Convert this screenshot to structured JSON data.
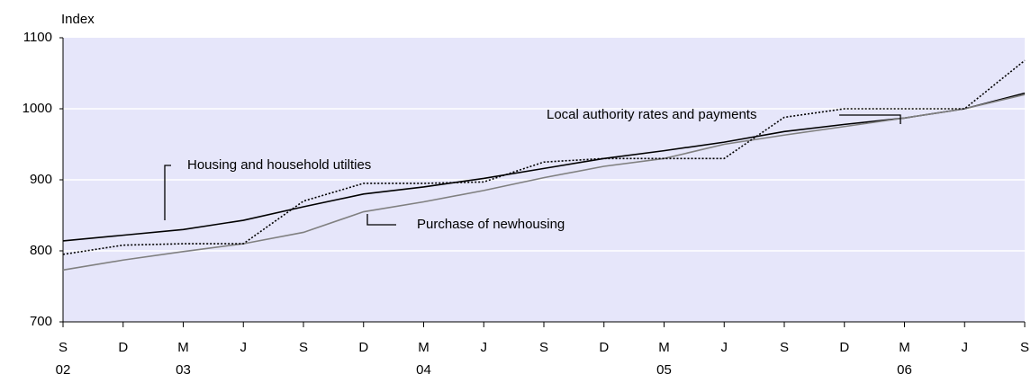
{
  "chart_data": {
    "type": "line",
    "y_label": "Index",
    "categories": [
      "S",
      "D",
      "M",
      "J",
      "S",
      "D",
      "M",
      "J",
      "S",
      "D",
      "M",
      "J",
      "S",
      "D",
      "M",
      "J",
      "S"
    ],
    "x_sublabels": [
      "02",
      null,
      "03",
      null,
      null,
      null,
      "04",
      null,
      null,
      null,
      "05",
      null,
      null,
      null,
      "06",
      null,
      null
    ],
    "ylim": [
      700,
      1100
    ],
    "yticks": [
      700,
      800,
      900,
      1000,
      1100
    ],
    "grid": true,
    "background": "#e6e6fa",
    "series": [
      {
        "name": "Housing and household utilties",
        "color": "#000000",
        "line_style": "solid",
        "values": [
          814,
          822,
          830,
          843,
          862,
          880,
          890,
          902,
          916,
          930,
          941,
          953,
          968,
          978,
          987,
          1000,
          1022
        ]
      },
      {
        "name": "Purchase of newhousing",
        "color": "#808080",
        "line_style": "solid",
        "values": [
          773,
          787,
          799,
          810,
          826,
          855,
          869,
          885,
          903,
          919,
          930,
          950,
          963,
          975,
          987,
          1000,
          1020
        ]
      },
      {
        "name": "Local authority rates and payments",
        "color": "#000000",
        "line_style": "dotted",
        "values": [
          795,
          808,
          810,
          810,
          870,
          895,
          895,
          897,
          925,
          930,
          930,
          930,
          988,
          1000,
          1000,
          1000,
          1068
        ]
      }
    ]
  }
}
